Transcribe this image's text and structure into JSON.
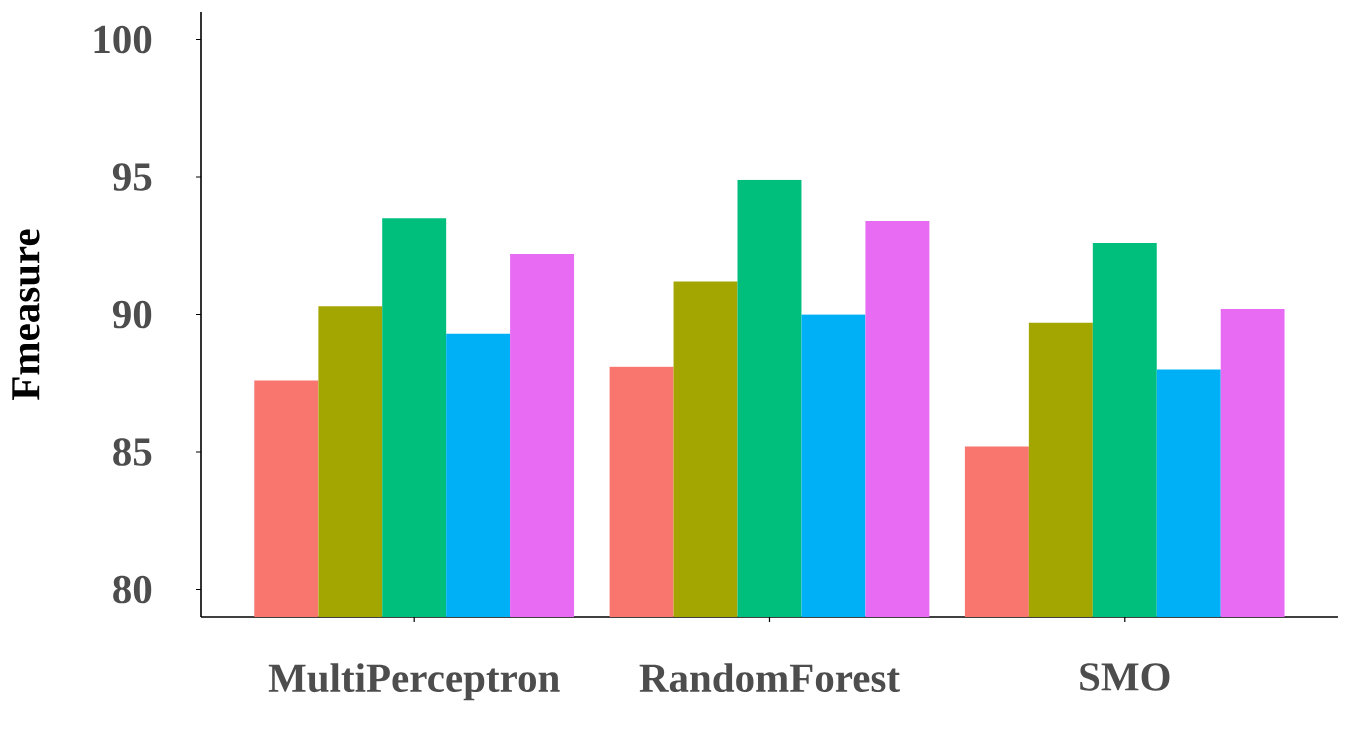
{
  "chart_data": {
    "type": "bar",
    "ylabel": "Fmeasure",
    "categories": [
      "MultiPerceptron",
      "RandomForest",
      "SMO"
    ],
    "series": [
      {
        "color": "#f8766d",
        "values": [
          87.6,
          88.1,
          85.2
        ]
      },
      {
        "color": "#a3a500",
        "values": [
          90.3,
          91.2,
          89.7
        ]
      },
      {
        "color": "#00bf7d",
        "values": [
          93.5,
          94.9,
          92.6
        ]
      },
      {
        "color": "#00b0f6",
        "values": [
          89.3,
          90.0,
          88.0
        ]
      },
      {
        "color": "#e76bf3",
        "values": [
          92.2,
          93.4,
          90.2
        ]
      }
    ],
    "ylim": [
      79,
      101
    ],
    "yticks": [
      80,
      85,
      90,
      95,
      100
    ]
  }
}
